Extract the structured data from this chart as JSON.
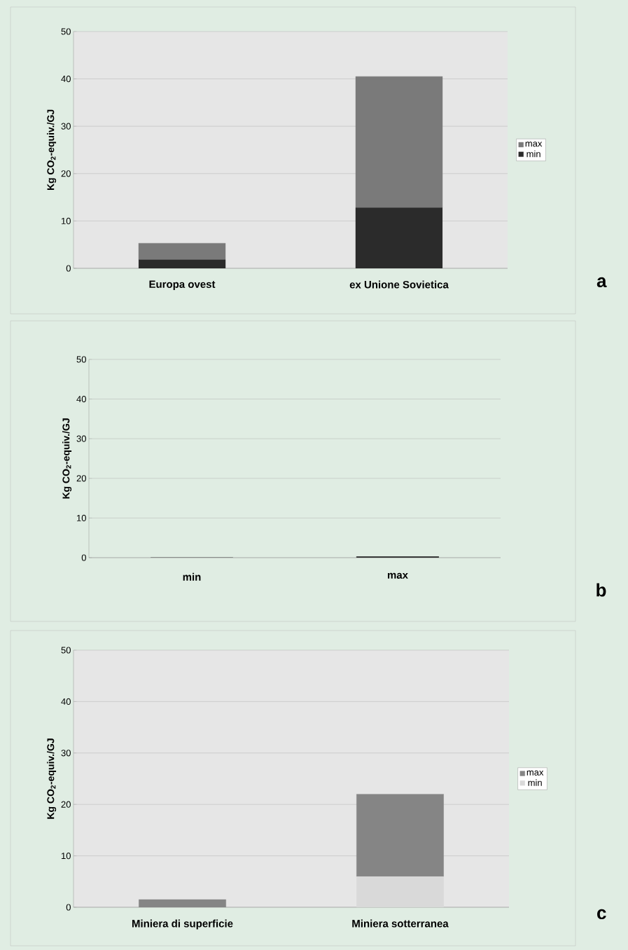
{
  "chart_data": [
    {
      "type": "bar",
      "stacked": true,
      "ylabel": "Kg CO$_{2}$-equiv./GJ",
      "categories": [
        "Europa ovest",
        "ex Unione Sovietica"
      ],
      "ylim": [
        0,
        50
      ],
      "yticks": [
        0,
        10,
        20,
        30,
        40,
        50
      ],
      "grid": "y",
      "legend": "right",
      "annotations": [
        "a"
      ],
      "series": [
        {
          "name": "min",
          "color": "#2b2b2b",
          "values": [
            1.8,
            12.8
          ]
        },
        {
          "name": "max",
          "color": "#7a7a7a",
          "values": [
            3.5,
            27.7
          ]
        }
      ]
    },
    {
      "type": "bar",
      "ylabel": "Kg CO$_{2}$-equiv./GJ",
      "categories": [
        "min",
        "max"
      ],
      "ylim": [
        0,
        50
      ],
      "yticks": [
        0,
        10,
        20,
        30,
        40,
        50
      ],
      "grid": "y",
      "annotations": [
        "b"
      ],
      "series": [
        {
          "color": "#2b2b2b",
          "values": [
            0,
            0.3
          ]
        }
      ]
    },
    {
      "type": "bar",
      "stacked": true,
      "ylabel": "Kg CO$_{2}$-equiv./GJ",
      "categories": [
        "Miniera di superficie",
        "Miniera sotterranea"
      ],
      "ylim": [
        0,
        50
      ],
      "yticks": [
        0,
        10,
        20,
        30,
        40,
        50
      ],
      "grid": "y",
      "legend": "right",
      "annotations": [
        "c"
      ],
      "series": [
        {
          "name": "min",
          "color": "#d9d9d9",
          "values": [
            0,
            6
          ]
        },
        {
          "name": "max",
          "color": "#858585",
          "values": [
            1.5,
            16
          ]
        }
      ]
    }
  ]
}
